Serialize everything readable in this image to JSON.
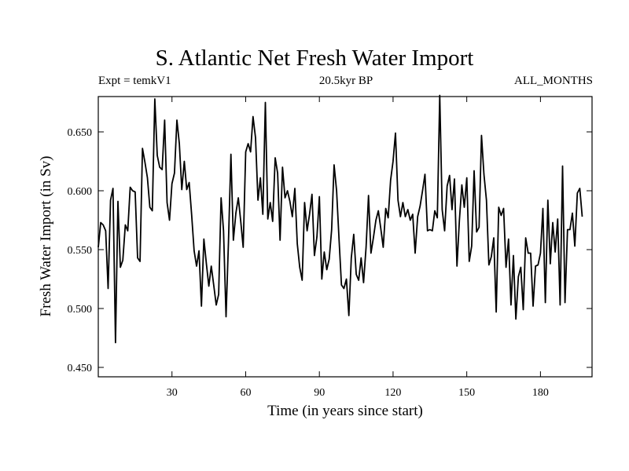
{
  "chart_data": {
    "type": "line",
    "title": "S. Atlantic Net Fresh Water Import",
    "subtitle_left": "Expt = temkV1",
    "subtitle_center": "20.5kyr BP",
    "subtitle_right": "ALL_MONTHS",
    "xlabel": "Time (in years since start)",
    "ylabel": "Fresh Water Import (in Sv)",
    "xlim": [
      0,
      201
    ],
    "ylim": [
      0.442,
      0.68
    ],
    "xticks": [
      30,
      60,
      90,
      120,
      150,
      180
    ],
    "xtick_labels": [
      "30",
      "60",
      "90",
      "120",
      "150",
      "180"
    ],
    "yticks": [
      0.45,
      0.5,
      0.55,
      0.6,
      0.65
    ],
    "ytick_labels": [
      "0.450",
      "0.500",
      "0.550",
      "0.600",
      "0.650"
    ],
    "series": [
      {
        "name": "Fresh Water Import",
        "x_start": 0,
        "x_step": 1,
        "values": [
          0.552,
          0.573,
          0.571,
          0.566,
          0.517,
          0.592,
          0.602,
          0.471,
          0.591,
          0.535,
          0.541,
          0.571,
          0.566,
          0.603,
          0.6,
          0.599,
          0.543,
          0.54,
          0.636,
          0.624,
          0.611,
          0.586,
          0.583,
          0.678,
          0.63,
          0.62,
          0.618,
          0.66,
          0.59,
          0.575,
          0.606,
          0.615,
          0.66,
          0.64,
          0.601,
          0.625,
          0.601,
          0.607,
          0.58,
          0.549,
          0.536,
          0.549,
          0.502,
          0.559,
          0.538,
          0.519,
          0.536,
          0.52,
          0.503,
          0.512,
          0.594,
          0.566,
          0.493,
          0.557,
          0.631,
          0.558,
          0.581,
          0.594,
          0.574,
          0.552,
          0.633,
          0.64,
          0.633,
          0.663,
          0.645,
          0.592,
          0.611,
          0.58,
          0.675,
          0.576,
          0.59,
          0.574,
          0.628,
          0.615,
          0.558,
          0.62,
          0.594,
          0.6,
          0.591,
          0.578,
          0.602,
          0.555,
          0.535,
          0.524,
          0.59,
          0.566,
          0.58,
          0.597,
          0.545,
          0.561,
          0.595,
          0.525,
          0.548,
          0.533,
          0.542,
          0.567,
          0.622,
          0.6,
          0.559,
          0.52,
          0.517,
          0.525,
          0.494,
          0.543,
          0.563,
          0.529,
          0.524,
          0.543,
          0.522,
          0.552,
          0.596,
          0.547,
          0.56,
          0.575,
          0.583,
          0.568,
          0.552,
          0.585,
          0.577,
          0.609,
          0.625,
          0.649,
          0.592,
          0.578,
          0.59,
          0.578,
          0.584,
          0.575,
          0.58,
          0.547,
          0.578,
          0.587,
          0.6,
          0.614,
          0.566,
          0.567,
          0.566,
          0.583,
          0.577,
          0.681,
          0.584,
          0.566,
          0.604,
          0.613,
          0.584,
          0.61,
          0.536,
          0.575,
          0.605,
          0.586,
          0.611,
          0.54,
          0.553,
          0.617,
          0.565,
          0.569,
          0.647,
          0.614,
          0.592,
          0.537,
          0.544,
          0.56,
          0.497,
          0.586,
          0.579,
          0.585,
          0.535,
          0.559,
          0.503,
          0.545,
          0.491,
          0.527,
          0.535,
          0.499,
          0.56,
          0.547,
          0.547,
          0.502,
          0.536,
          0.537,
          0.547,
          0.585,
          0.505,
          0.592,
          0.538,
          0.573,
          0.548,
          0.576,
          0.503,
          0.621,
          0.505,
          0.567,
          0.567,
          0.581,
          0.553,
          0.598,
          0.602,
          0.578
        ]
      }
    ],
    "line_color": "#000000"
  }
}
